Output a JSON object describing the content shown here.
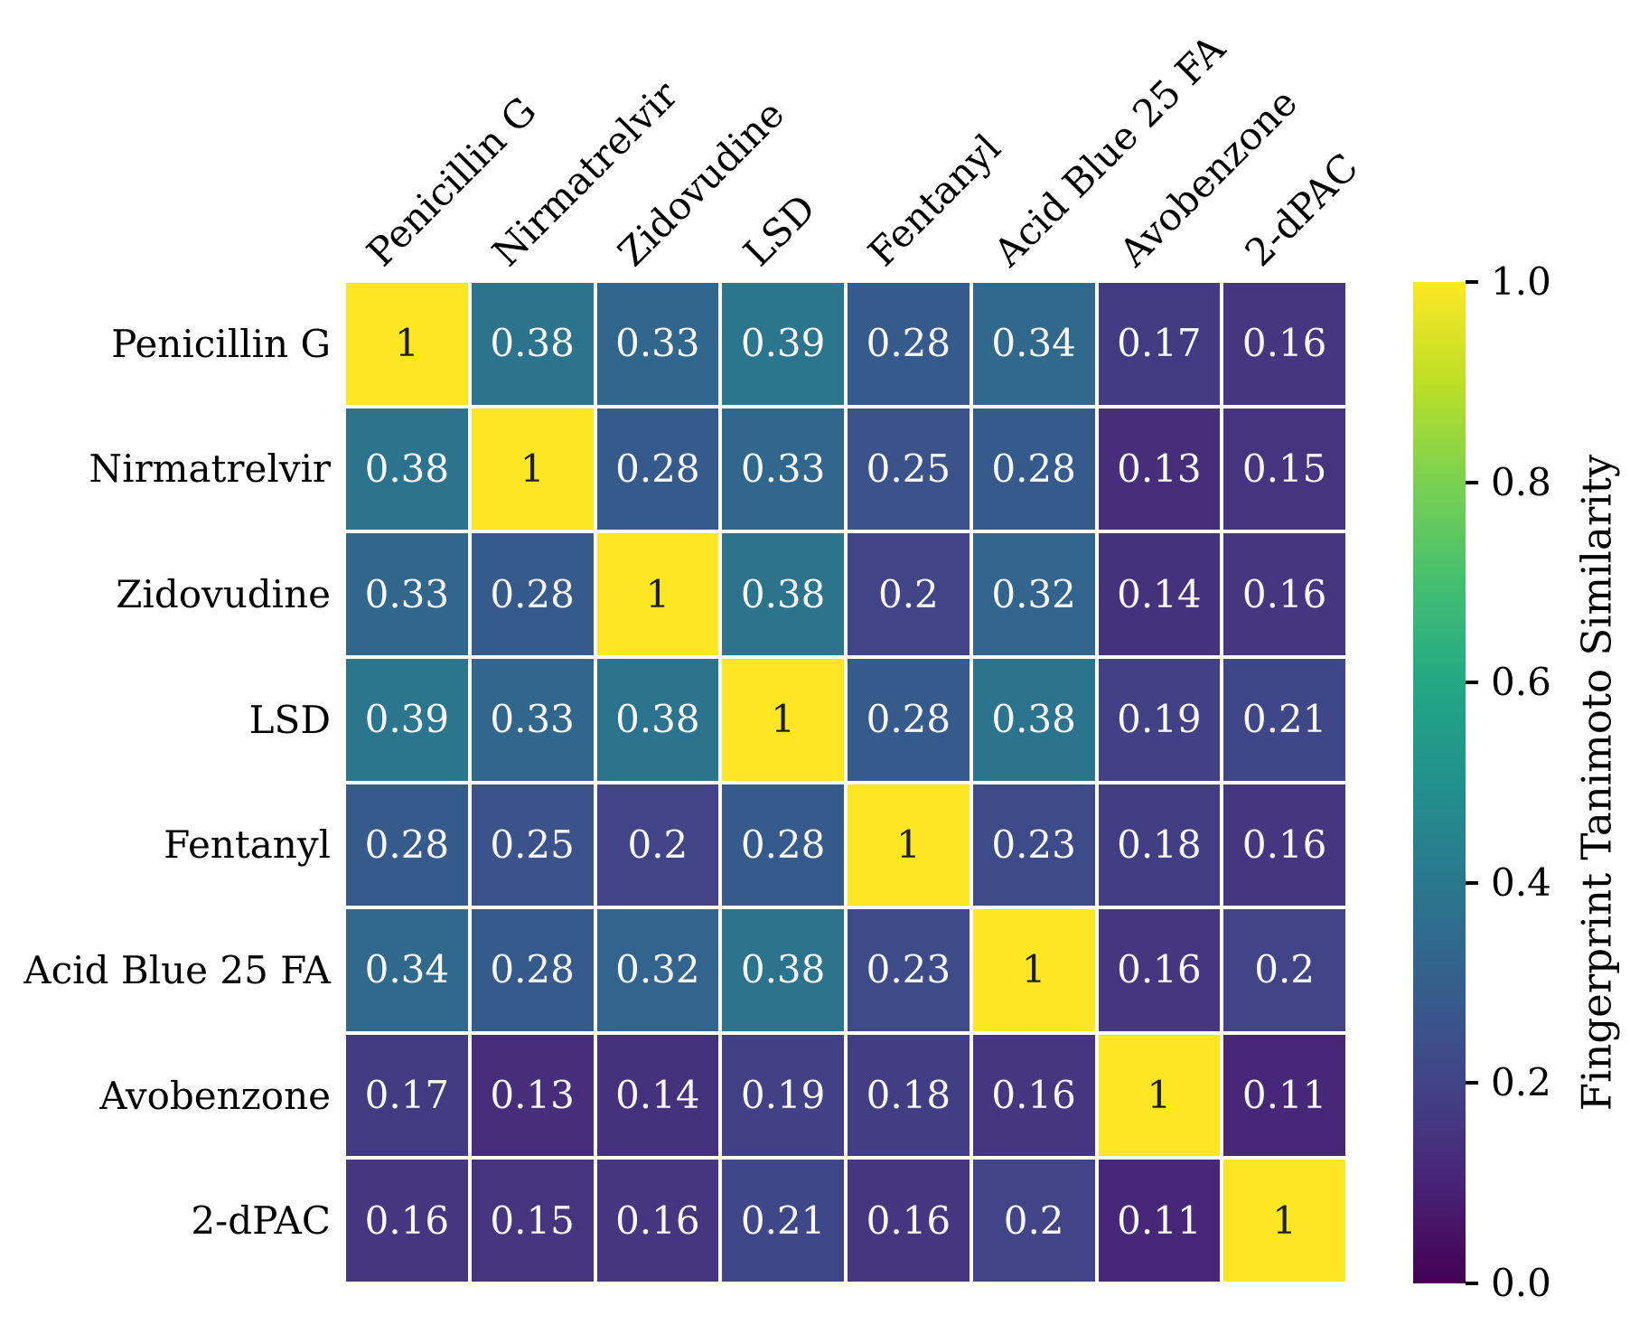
{
  "figure": {
    "background": "#ffffff",
    "grid_gap_color": "#ffffff",
    "text_color": "#000000"
  },
  "chart_data": {
    "type": "heatmap",
    "title": "",
    "labels": [
      "Penicillin G",
      "Nirmatrelvir",
      "Zidovudine",
      "LSD",
      "Fentanyl",
      "Acid Blue 25 FA",
      "Avobenzone",
      "2-dPAC"
    ],
    "matrix": [
      [
        1,
        0.38,
        0.33,
        0.39,
        0.28,
        0.34,
        0.17,
        0.16
      ],
      [
        0.38,
        1,
        0.28,
        0.33,
        0.25,
        0.28,
        0.13,
        0.15
      ],
      [
        0.33,
        0.28,
        1,
        0.38,
        0.2,
        0.32,
        0.14,
        0.16
      ],
      [
        0.39,
        0.33,
        0.38,
        1,
        0.28,
        0.38,
        0.19,
        0.21
      ],
      [
        0.28,
        0.25,
        0.2,
        0.28,
        1,
        0.23,
        0.18,
        0.16
      ],
      [
        0.34,
        0.28,
        0.32,
        0.38,
        0.23,
        1,
        0.16,
        0.2
      ],
      [
        0.17,
        0.13,
        0.14,
        0.19,
        0.18,
        0.16,
        1,
        0.11
      ],
      [
        0.16,
        0.15,
        0.16,
        0.21,
        0.16,
        0.2,
        0.11,
        1
      ]
    ],
    "vmin": 0.0,
    "vmax": 1.0,
    "colormap": "viridis",
    "colormap_stops": [
      "#440154",
      "#482475",
      "#414487",
      "#355f8d",
      "#2a788e",
      "#21918c",
      "#22a884",
      "#44bf70",
      "#7ad151",
      "#bddf26",
      "#fde725"
    ],
    "annotation_text_light": "#fafafa",
    "annotation_text_dark": "#1f1f1f",
    "annotation_threshold": 0.5,
    "colorbar": {
      "label": "Fingerprint Tanimoto Similarity",
      "ticks": [
        0.0,
        0.2,
        0.4,
        0.6,
        0.8,
        1.0
      ],
      "tick_labels": [
        "0.0",
        "0.2",
        "0.4",
        "0.6",
        "0.8",
        "1.0"
      ],
      "tick_color": "#000000",
      "position": "right"
    }
  }
}
